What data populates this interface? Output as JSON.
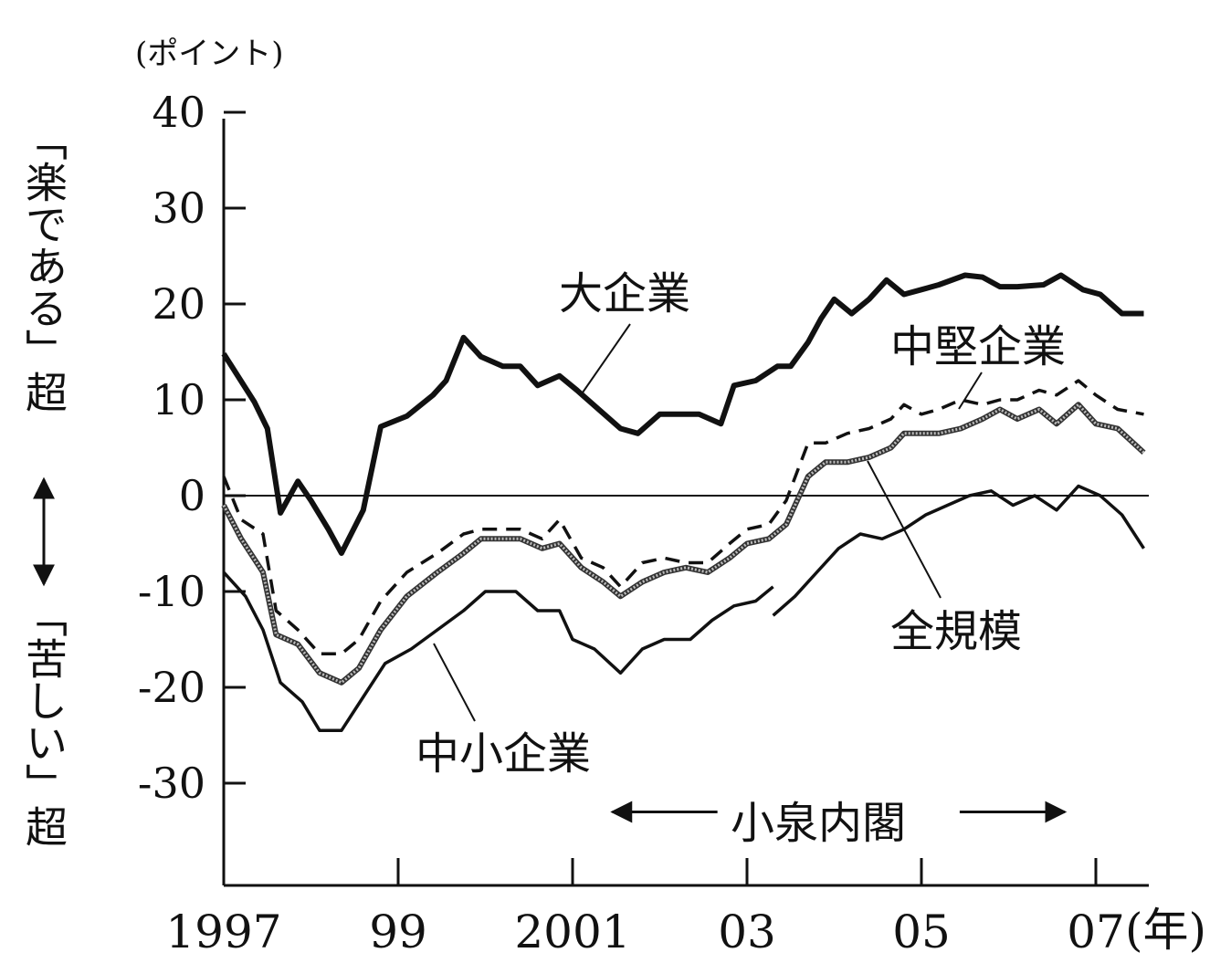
{
  "chart_data": {
    "type": "line",
    "ylabel_unit": "(ポイント)",
    "xlabel_unit": "(年)",
    "ylabel_top": "「楽である」超",
    "ylabel_bottom": "「苦しい」超",
    "ylim": [
      -40,
      40
    ],
    "yticks": [
      40,
      30,
      20,
      10,
      0,
      -10,
      -20,
      -30
    ],
    "ytick_labels": [
      "40",
      "30",
      "20",
      "10",
      "0",
      "-10",
      "-20",
      "-30"
    ],
    "xlim": [
      1997,
      2008.1
    ],
    "xticks": [
      1997,
      1999,
      2001,
      2003,
      2005,
      2007
    ],
    "xtick_labels": [
      "1997",
      "99",
      "2001",
      "03",
      "05",
      "07"
    ],
    "zero_line": true,
    "grid": false,
    "annotation": {
      "text": "小泉内閣",
      "from": 2001.3,
      "to": 2006.8,
      "y": -33
    },
    "series": [
      {
        "name": "大企業",
        "style": "solid-thick",
        "color": "#111111",
        "x": [
          1997.0,
          1997.35,
          1997.5,
          1997.65,
          1997.85,
          1998.0,
          1998.2,
          1998.35,
          1998.6,
          1998.8,
          1999.1,
          1999.4,
          1999.55,
          1999.75,
          1999.95,
          2000.2,
          2000.4,
          2000.6,
          2000.85,
          2001.05,
          2001.3,
          2001.55,
          2001.75,
          2002.0,
          2002.25,
          2002.45,
          2002.7,
          2002.85,
          2003.1,
          2003.35,
          2003.5,
          2003.7,
          2003.85,
          2004.0,
          2004.2,
          2004.4,
          2004.6,
          2004.8,
          2005.0,
          2005.2,
          2005.5,
          2005.7,
          2005.9,
          2006.1,
          2006.4,
          2006.6,
          2006.85,
          2007.05,
          2007.3,
          2007.55
        ],
        "values": [
          14.8,
          9.8,
          7.0,
          -1.8,
          1.5,
          -0.5,
          -3.5,
          -6.0,
          -1.5,
          7.2,
          8.3,
          10.5,
          12.0,
          16.5,
          14.5,
          13.5,
          13.5,
          11.5,
          12.5,
          11.0,
          9.0,
          7.0,
          6.5,
          8.5,
          8.5,
          8.5,
          7.5,
          11.5,
          12.0,
          13.5,
          13.5,
          16.0,
          18.5,
          20.5,
          19.0,
          20.5,
          22.5,
          21.0,
          21.5,
          22.0,
          23.0,
          22.8,
          21.8,
          21.8,
          22.0,
          23.0,
          21.5,
          21.0,
          19.0,
          19.0
        ]
      },
      {
        "name": "中堅企業",
        "style": "dashed",
        "color": "#111111",
        "x": [
          1997.0,
          1997.2,
          1997.45,
          1997.6,
          1997.85,
          1998.1,
          1998.35,
          1998.55,
          1998.8,
          1999.1,
          1999.45,
          1999.75,
          1999.95,
          2000.2,
          2000.4,
          2000.65,
          2000.85,
          2001.1,
          2001.35,
          2001.55,
          2001.8,
          2002.05,
          2002.3,
          2002.55,
          2002.8,
          2003.0,
          2003.25,
          2003.45,
          2003.7,
          2003.9,
          2004.15,
          2004.4,
          2004.65,
          2004.8,
          2005.0,
          2005.2,
          2005.45,
          2005.7,
          2005.9,
          2006.1,
          2006.35,
          2006.55,
          2006.8,
          2007.0,
          2007.25,
          2007.55
        ],
        "values": [
          2.0,
          -2.5,
          -4.0,
          -12.0,
          -14.0,
          -16.5,
          -16.5,
          -15.0,
          -11.0,
          -8.0,
          -6.0,
          -4.0,
          -3.5,
          -3.5,
          -3.5,
          -4.5,
          -2.5,
          -6.5,
          -7.5,
          -9.5,
          -7.0,
          -6.5,
          -7.0,
          -7.0,
          -5.0,
          -3.5,
          -3.0,
          -0.5,
          5.5,
          5.5,
          6.5,
          7.0,
          8.0,
          9.5,
          8.5,
          9.0,
          10.0,
          9.5,
          10.0,
          10.0,
          11.0,
          10.5,
          12.0,
          10.5,
          9.0,
          8.5
        ]
      },
      {
        "name": "全規模",
        "style": "grey-hatched",
        "color": "#555555",
        "x": [
          1997.0,
          1997.2,
          1997.45,
          1997.6,
          1997.85,
          1998.1,
          1998.35,
          1998.55,
          1998.8,
          1999.1,
          1999.45,
          1999.75,
          1999.95,
          2000.2,
          2000.4,
          2000.65,
          2000.85,
          2001.1,
          2001.35,
          2001.55,
          2001.8,
          2002.05,
          2002.3,
          2002.55,
          2002.8,
          2003.0,
          2003.25,
          2003.45,
          2003.7,
          2003.9,
          2004.15,
          2004.4,
          2004.65,
          2004.8,
          2005.0,
          2005.2,
          2005.45,
          2005.7,
          2005.9,
          2006.1,
          2006.35,
          2006.55,
          2006.8,
          2007.0,
          2007.25,
          2007.55
        ],
        "values": [
          -1.0,
          -4.5,
          -8.0,
          -14.5,
          -15.5,
          -18.5,
          -19.5,
          -18.0,
          -14.0,
          -10.5,
          -8.0,
          -6.0,
          -4.5,
          -4.5,
          -4.5,
          -5.5,
          -5.0,
          -7.5,
          -9.0,
          -10.5,
          -9.0,
          -8.0,
          -7.5,
          -8.0,
          -6.5,
          -5.0,
          -4.5,
          -3.0,
          2.0,
          3.5,
          3.5,
          4.0,
          5.0,
          6.5,
          6.5,
          6.5,
          7.0,
          8.0,
          9.0,
          8.0,
          9.0,
          7.5,
          9.5,
          7.5,
          7.0,
          4.5
        ]
      },
      {
        "name": "中小企業",
        "style": "solid-thin",
        "color": "#111111",
        "segments": [
          {
            "x": [
              1997.0,
              1997.25,
              1997.45,
              1997.65,
              1997.9,
              1998.1,
              1998.35,
              1998.6,
              1998.85,
              1999.15,
              1999.45,
              1999.75,
              2000.0,
              2000.35,
              2000.6,
              2000.85,
              2001.0,
              2001.25,
              2001.55,
              2001.8,
              2002.05,
              2002.35,
              2002.6,
              2002.85,
              2003.1,
              2003.3
            ],
            "values": [
              -8.0,
              -10.5,
              -14.0,
              -19.5,
              -21.5,
              -24.5,
              -24.5,
              -21.0,
              -17.5,
              -16.0,
              -14.0,
              -12.0,
              -10.0,
              -10.0,
              -12.0,
              -12.0,
              -15.0,
              -16.0,
              -18.5,
              -16.0,
              -15.0,
              -15.0,
              -13.0,
              -11.5,
              -11.0,
              -9.5
            ]
          },
          {
            "x": [
              2003.3,
              2003.55,
              2003.8,
              2004.05,
              2004.3,
              2004.55,
              2004.8,
              2005.05,
              2005.3,
              2005.55,
              2005.8,
              2006.05,
              2006.3,
              2006.55,
              2006.8,
              2007.05,
              2007.3,
              2007.55
            ],
            "values": [
              -12.5,
              -10.5,
              -8.0,
              -5.5,
              -4.0,
              -4.5,
              -3.5,
              -2.0,
              -1.0,
              0.0,
              0.5,
              -1.0,
              0.0,
              -1.5,
              1.0,
              0.0,
              -2.0,
              -5.5
            ]
          }
        ]
      }
    ],
    "labels": {
      "large": "大企業",
      "mid": "中堅企業",
      "all": "全規模",
      "small": "中小企業"
    }
  }
}
